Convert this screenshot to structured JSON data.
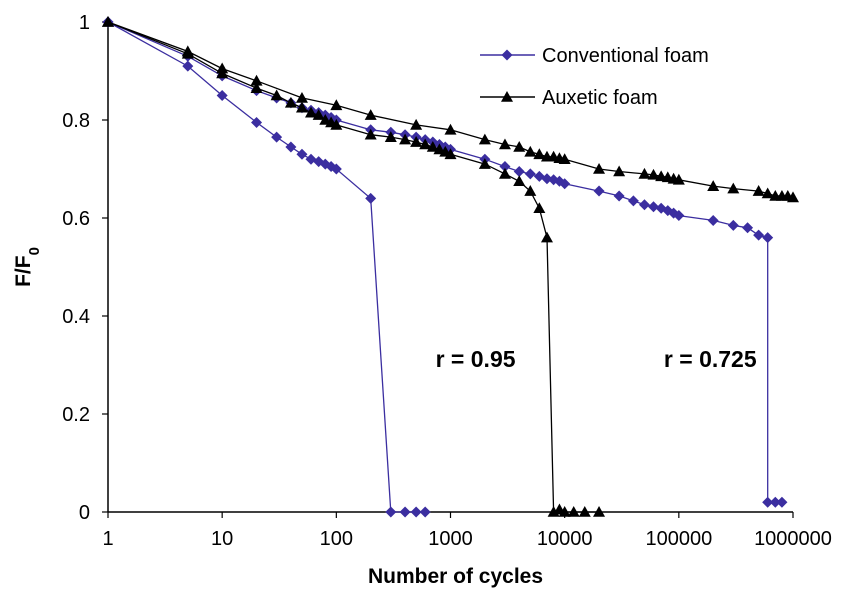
{
  "chart_data": {
    "type": "line",
    "title": "",
    "xlabel": "Number of cycles",
    "ylabel": "F/F",
    "ylabel_subscript": "0",
    "x_scale": "log",
    "xlim": [
      1,
      1000000
    ],
    "ylim": [
      0,
      1
    ],
    "x_ticks": [
      "1",
      "10",
      "100",
      "1000",
      "10000",
      "100000",
      "1000000"
    ],
    "y_ticks": [
      "0",
      "0.2",
      "0.4",
      "0.6",
      "0.8",
      "1"
    ],
    "grid": false,
    "legend_position": "top-right",
    "series": [
      {
        "name": "Conventional foam",
        "color": "#3b2ea0",
        "marker": "diamond",
        "points": [
          [
            1,
            1.0
          ],
          [
            5,
            0.91
          ],
          [
            10,
            0.85
          ],
          [
            20,
            0.795
          ],
          [
            30,
            0.765
          ],
          [
            40,
            0.745
          ],
          [
            50,
            0.73
          ],
          [
            60,
            0.72
          ],
          [
            70,
            0.715
          ],
          [
            80,
            0.71
          ],
          [
            90,
            0.705
          ],
          [
            100,
            0.7
          ],
          [
            200,
            0.64
          ],
          [
            300,
            0.0
          ],
          [
            400,
            0.0
          ],
          [
            500,
            0.0
          ],
          [
            600,
            0.0
          ],
          [
            1,
            1.0
          ],
          [
            5,
            0.93
          ],
          [
            10,
            0.89
          ],
          [
            20,
            0.86
          ],
          [
            30,
            0.845
          ],
          [
            40,
            0.835
          ],
          [
            50,
            0.825
          ],
          [
            60,
            0.82
          ],
          [
            70,
            0.815
          ],
          [
            80,
            0.81
          ],
          [
            90,
            0.805
          ],
          [
            100,
            0.8
          ],
          [
            200,
            0.78
          ],
          [
            300,
            0.775
          ],
          [
            400,
            0.77
          ],
          [
            500,
            0.765
          ],
          [
            600,
            0.76
          ],
          [
            700,
            0.755
          ],
          [
            800,
            0.75
          ],
          [
            900,
            0.745
          ],
          [
            1000,
            0.74
          ],
          [
            2000,
            0.72
          ],
          [
            3000,
            0.705
          ],
          [
            4000,
            0.695
          ],
          [
            5000,
            0.69
          ],
          [
            6000,
            0.685
          ],
          [
            7000,
            0.68
          ],
          [
            8000,
            0.678
          ],
          [
            9000,
            0.675
          ],
          [
            10000,
            0.67
          ],
          [
            20000,
            0.655
          ],
          [
            30000,
            0.645
          ],
          [
            40000,
            0.635
          ],
          [
            50000,
            0.627
          ],
          [
            60000,
            0.623
          ],
          [
            70000,
            0.62
          ],
          [
            80000,
            0.615
          ],
          [
            90000,
            0.61
          ],
          [
            100000,
            0.605
          ],
          [
            200000,
            0.595
          ],
          [
            300000,
            0.585
          ],
          [
            400000,
            0.58
          ],
          [
            500000,
            0.565
          ],
          [
            600000,
            0.56
          ],
          [
            600000,
            0.02
          ],
          [
            700000,
            0.02
          ],
          [
            800000,
            0.02
          ]
        ]
      },
      {
        "name": "Auxetic foam",
        "color": "#000000",
        "marker": "triangle",
        "points": [
          [
            1,
            1.0
          ],
          [
            5,
            0.935
          ],
          [
            10,
            0.895
          ],
          [
            20,
            0.865
          ],
          [
            30,
            0.85
          ],
          [
            40,
            0.835
          ],
          [
            50,
            0.825
          ],
          [
            60,
            0.815
          ],
          [
            70,
            0.81
          ],
          [
            80,
            0.8
          ],
          [
            90,
            0.795
          ],
          [
            100,
            0.79
          ],
          [
            200,
            0.77
          ],
          [
            300,
            0.765
          ],
          [
            400,
            0.76
          ],
          [
            500,
            0.755
          ],
          [
            600,
            0.75
          ],
          [
            700,
            0.745
          ],
          [
            800,
            0.74
          ],
          [
            900,
            0.735
          ],
          [
            1000,
            0.73
          ],
          [
            2000,
            0.71
          ],
          [
            3000,
            0.69
          ],
          [
            4000,
            0.675
          ],
          [
            5000,
            0.655
          ],
          [
            6000,
            0.62
          ],
          [
            7000,
            0.56
          ],
          [
            8000,
            0.0
          ],
          [
            9000,
            0.005
          ],
          [
            10000,
            0.0
          ],
          [
            12000,
            0.0
          ],
          [
            15000,
            0.0
          ],
          [
            20000,
            0.0
          ],
          [
            1,
            1.0
          ],
          [
            5,
            0.94
          ],
          [
            10,
            0.905
          ],
          [
            20,
            0.88
          ],
          [
            50,
            0.845
          ],
          [
            100,
            0.83
          ],
          [
            200,
            0.81
          ],
          [
            500,
            0.79
          ],
          [
            1000,
            0.78
          ],
          [
            2000,
            0.76
          ],
          [
            3000,
            0.75
          ],
          [
            4000,
            0.745
          ],
          [
            5000,
            0.735
          ],
          [
            6000,
            0.73
          ],
          [
            7000,
            0.725
          ],
          [
            8000,
            0.725
          ],
          [
            9000,
            0.722
          ],
          [
            10000,
            0.72
          ],
          [
            20000,
            0.7
          ],
          [
            30000,
            0.695
          ],
          [
            50000,
            0.69
          ],
          [
            60000,
            0.688
          ],
          [
            70000,
            0.685
          ],
          [
            80000,
            0.683
          ],
          [
            90000,
            0.68
          ],
          [
            100000,
            0.678
          ],
          [
            200000,
            0.665
          ],
          [
            300000,
            0.66
          ],
          [
            500000,
            0.655
          ],
          [
            600000,
            0.65
          ],
          [
            700000,
            0.645
          ],
          [
            800000,
            0.645
          ],
          [
            900000,
            0.645
          ],
          [
            1000000,
            0.642
          ]
        ]
      }
    ],
    "annotations": [
      {
        "text": "r = 0.95",
        "x": 1500,
        "y": 0.32
      },
      {
        "text": "r = 0.725",
        "x": 150000,
        "y": 0.32
      }
    ]
  }
}
